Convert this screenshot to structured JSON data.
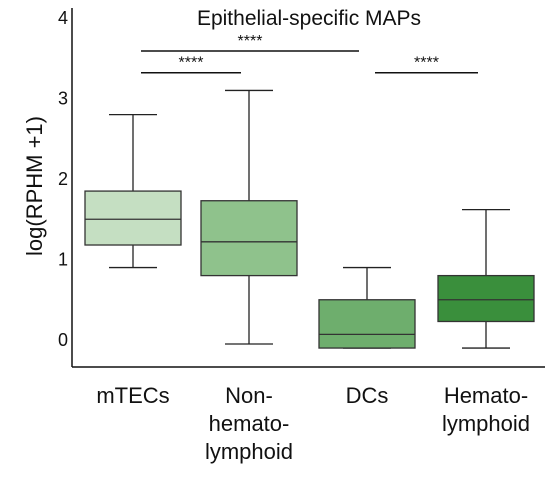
{
  "chart_data": {
    "type": "box",
    "title": "Epithelial-specific  MAPs",
    "ylabel": "log(RPHM +1)",
    "ylim": [
      -0.3,
      4.1
    ],
    "yticks": [
      "0",
      "1",
      "2",
      "3",
      "4"
    ],
    "categories": [
      [
        "mTECs"
      ],
      [
        "Non-",
        "hemato-",
        "lymphoid"
      ],
      [
        "DCs"
      ],
      [
        "Hemato-",
        "lymphoid"
      ]
    ],
    "boxes": [
      {
        "whisker_low": 0.9,
        "q1": 1.18,
        "median": 1.5,
        "q3": 1.85,
        "whisker_high": 2.8,
        "color": "#c5dfc2"
      },
      {
        "whisker_low": -0.05,
        "q1": 0.8,
        "median": 1.22,
        "q3": 1.73,
        "whisker_high": 3.1,
        "color": "#8fc28c"
      },
      {
        "whisker_low": -0.1,
        "q1": -0.1,
        "median": 0.07,
        "q3": 0.5,
        "whisker_high": 0.9,
        "color": "#6eae6d"
      },
      {
        "whisker_low": -0.1,
        "q1": 0.23,
        "median": 0.5,
        "q3": 0.8,
        "whisker_high": 1.62,
        "color": "#3a8f3c"
      }
    ],
    "significance": [
      {
        "from": 0,
        "to": 1,
        "y": 3.32,
        "label": "****"
      },
      {
        "from": 0,
        "to": 2,
        "y": 3.59,
        "label": "****"
      },
      {
        "from": 2,
        "to": 3,
        "y": 3.32,
        "label": "****"
      }
    ]
  }
}
